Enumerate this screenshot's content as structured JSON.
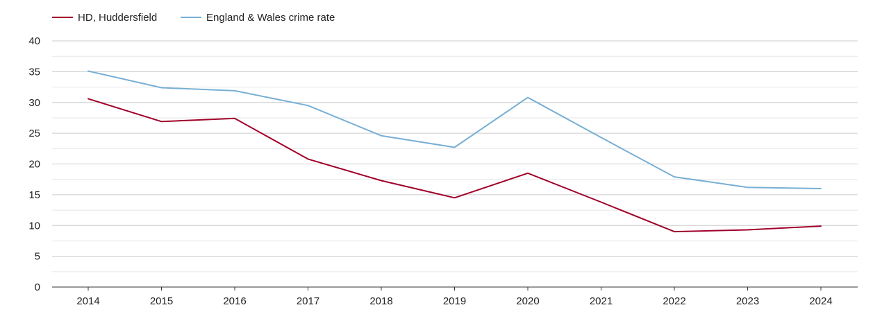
{
  "chart_data": {
    "type": "line",
    "title": "",
    "xlabel": "",
    "ylabel": "",
    "ylim": [
      0,
      40
    ],
    "y_ticks": [
      0,
      5,
      10,
      15,
      20,
      25,
      30,
      35,
      40
    ],
    "grid": true,
    "legend_position": "top-left",
    "categories": [
      "2014",
      "2015",
      "2016",
      "2017",
      "2018",
      "2019",
      "2020",
      "2021",
      "2022",
      "2023",
      "2024"
    ],
    "series": [
      {
        "name": "HD, Huddersfield",
        "color": "#a0002a",
        "values": [
          30.6,
          26.9,
          27.4,
          20.8,
          17.3,
          14.5,
          18.5,
          13.8,
          9.0,
          9.3,
          9.9
        ]
      },
      {
        "name": "England & Wales crime rate",
        "color": "#77afd4",
        "values": [
          35.1,
          32.4,
          31.9,
          29.5,
          24.6,
          22.7,
          30.8,
          24.3,
          17.9,
          16.2,
          16.0
        ]
      }
    ]
  }
}
